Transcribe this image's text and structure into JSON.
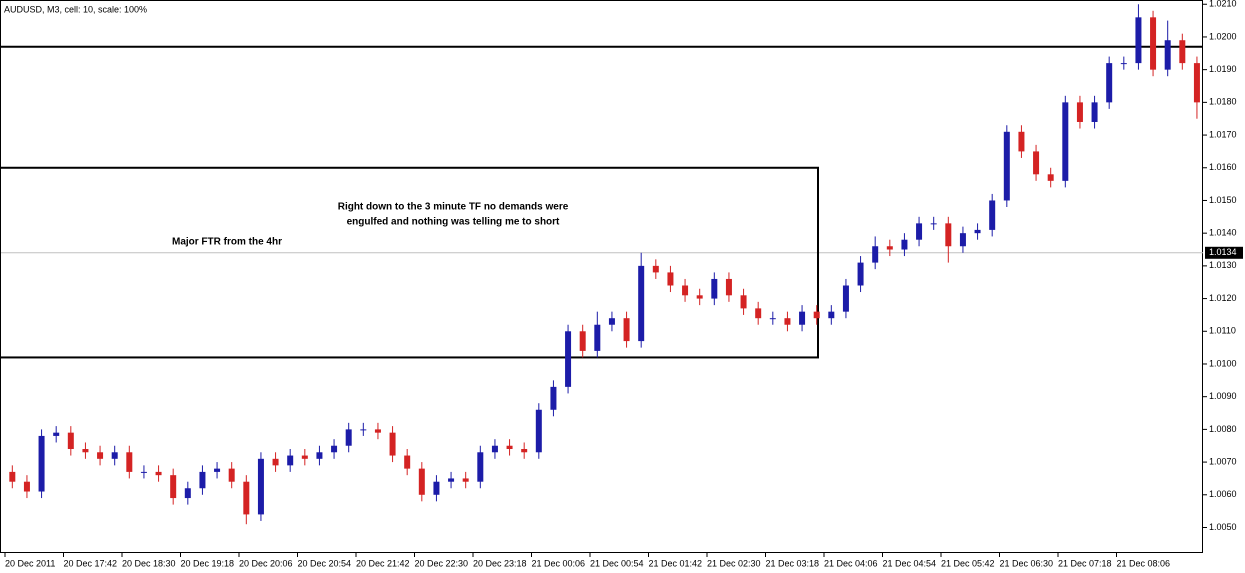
{
  "chart_data": {
    "type": "candlestick",
    "title": "AUDUSD, M3, cell: 10, scale: 100%",
    "annotations": [
      "Right down to the 3 minute TF no demands were",
      "engulfed and nothing was telling me to short",
      "Major FTR from the 4hr"
    ],
    "x": [
      "20 Dec 2011",
      null,
      null,
      null,
      "20 Dec 17:42",
      null,
      null,
      null,
      "20 Dec 18:30",
      null,
      null,
      null,
      "20 Dec 19:18",
      null,
      null,
      null,
      "20 Dec 20:06",
      null,
      null,
      null,
      "20 Dec 20:54",
      null,
      null,
      null,
      "20 Dec 21:42",
      null,
      null,
      null,
      "20 Dec 22:30",
      null,
      null,
      null,
      "20 Dec 23:18",
      null,
      null,
      null,
      "21 Dec 00:06",
      null,
      null,
      null,
      "21 Dec 00:54",
      null,
      null,
      null,
      "21 Dec 01:42",
      null,
      null,
      null,
      "21 Dec 02:30",
      null,
      null,
      null,
      "21 Dec 03:18",
      null,
      null,
      null,
      "21 Dec 04:06",
      null,
      null,
      null,
      "21 Dec 04:54",
      null,
      null,
      null,
      "21 Dec 05:42",
      null,
      null,
      null,
      "21 Dec 06:30",
      null,
      null,
      null,
      "21 Dec 07:18",
      null,
      null,
      null,
      "21 Dec 08:06",
      null,
      null,
      null,
      null,
      null
    ],
    "open": [
      1.0067,
      1.0064,
      1.0061,
      1.0078,
      1.0079,
      1.0074,
      1.0073,
      1.0071,
      1.0073,
      1.0067,
      1.0067,
      1.0066,
      1.0059,
      1.0062,
      1.0067,
      1.0068,
      1.0064,
      1.0054,
      1.0071,
      1.0069,
      1.0072,
      1.0071,
      1.0073,
      1.0075,
      1.008,
      1.008,
      1.0079,
      1.0072,
      1.0068,
      1.006,
      1.0064,
      1.0065,
      1.0064,
      1.0073,
      1.0075,
      1.0074,
      1.0073,
      1.0086,
      1.0093,
      1.011,
      1.0104,
      1.0112,
      1.0114,
      1.0107,
      1.013,
      1.0128,
      1.0124,
      1.0121,
      1.012,
      1.0126,
      1.0121,
      1.0117,
      1.0114,
      1.0114,
      1.0112,
      1.0116,
      1.0114,
      1.0116,
      1.0124,
      1.0131,
      1.0136,
      1.0135,
      1.0138,
      1.0143,
      1.0143,
      1.0136,
      1.014,
      1.0141,
      1.015,
      1.0171,
      1.0165,
      1.0158,
      1.0156,
      1.018,
      1.0174,
      1.018,
      1.0192,
      1.0192,
      1.0206,
      1.019,
      1.0199,
      1.0192
    ],
    "high": [
      1.0069,
      1.0066,
      1.008,
      1.0081,
      1.0081,
      1.0076,
      1.0075,
      1.0075,
      1.0075,
      1.0069,
      1.0069,
      1.0068,
      1.0064,
      1.0069,
      1.007,
      1.007,
      1.0066,
      1.0073,
      1.0073,
      1.0074,
      1.0074,
      1.0075,
      1.0077,
      1.0082,
      1.0082,
      1.0082,
      1.0081,
      1.0074,
      1.007,
      1.0066,
      1.0067,
      1.0067,
      1.0075,
      1.0077,
      1.0077,
      1.0076,
      1.0088,
      1.0095,
      1.0112,
      1.0112,
      1.0116,
      1.0116,
      1.0116,
      1.0134,
      1.0132,
      1.013,
      1.0126,
      1.0123,
      1.0128,
      1.0128,
      1.0123,
      1.0119,
      1.0116,
      1.0116,
      1.0118,
      1.0118,
      1.0118,
      1.0126,
      1.0133,
      1.0139,
      1.0138,
      1.014,
      1.0145,
      1.0145,
      1.0145,
      1.0142,
      1.0143,
      1.0152,
      1.0173,
      1.0173,
      1.0167,
      1.016,
      1.0182,
      1.0182,
      1.0182,
      1.0194,
      1.0194,
      1.021,
      1.0208,
      1.0205,
      1.0201,
      1.0194
    ],
    "low": [
      1.0062,
      1.0059,
      1.0059,
      1.0076,
      1.0072,
      1.0071,
      1.0069,
      1.0069,
      1.0065,
      1.0065,
      1.0064,
      1.0057,
      1.0057,
      1.006,
      1.0065,
      1.0062,
      1.0051,
      1.0052,
      1.0067,
      1.0067,
      1.0069,
      1.0069,
      1.0071,
      1.0073,
      1.0078,
      1.0077,
      1.007,
      1.0066,
      1.0058,
      1.0058,
      1.0062,
      1.0062,
      1.0062,
      1.0071,
      1.0072,
      1.0071,
      1.0071,
      1.0084,
      1.0091,
      1.0102,
      1.0102,
      1.011,
      1.0105,
      1.0105,
      1.0126,
      1.0122,
      1.0119,
      1.0118,
      1.0118,
      1.0119,
      1.0115,
      1.0112,
      1.0112,
      1.011,
      1.011,
      1.0112,
      1.0112,
      1.0114,
      1.0122,
      1.0129,
      1.0133,
      1.0133,
      1.0136,
      1.0141,
      1.0131,
      1.0134,
      1.0138,
      1.0139,
      1.0148,
      1.0163,
      1.0156,
      1.0154,
      1.0154,
      1.0172,
      1.0172,
      1.0178,
      1.019,
      1.019,
      1.0188,
      1.0188,
      1.019,
      1.0175
    ],
    "close": [
      1.0064,
      1.0061,
      1.0078,
      1.0079,
      1.0074,
      1.0073,
      1.0071,
      1.0073,
      1.0067,
      1.0067,
      1.0066,
      1.0059,
      1.0062,
      1.0067,
      1.0068,
      1.0064,
      1.0054,
      1.0071,
      1.0069,
      1.0072,
      1.0071,
      1.0073,
      1.0075,
      1.008,
      1.008,
      1.0079,
      1.0072,
      1.0068,
      1.006,
      1.0064,
      1.0065,
      1.0064,
      1.0073,
      1.0075,
      1.0074,
      1.0073,
      1.0086,
      1.0093,
      1.011,
      1.0104,
      1.0112,
      1.0114,
      1.0107,
      1.013,
      1.0128,
      1.0124,
      1.0121,
      1.012,
      1.0126,
      1.0121,
      1.0117,
      1.0114,
      1.0114,
      1.0112,
      1.0116,
      1.0114,
      1.0116,
      1.0124,
      1.0131,
      1.0136,
      1.0135,
      1.0138,
      1.0143,
      1.0143,
      1.0136,
      1.014,
      1.0141,
      1.015,
      1.0171,
      1.0165,
      1.0158,
      1.0156,
      1.018,
      1.0174,
      1.018,
      1.0192,
      1.0192,
      1.0206,
      1.019,
      1.0199,
      1.0192,
      1.018
    ],
    "up_color": "#1c1ca8",
    "down_color": "#d42323",
    "hline": 1.0197,
    "zone": {
      "high": 1.016,
      "low": 1.0102
    },
    "last_price": 1.0134,
    "ylim": [
      1.00422,
      1.02113
    ],
    "yticks": [
      {
        "value": 1.005,
        "label": "1.0050"
      },
      {
        "value": 1.006,
        "label": "1.0060"
      },
      {
        "value": 1.007,
        "label": "1.0070"
      },
      {
        "value": 1.008,
        "label": "1.0080"
      },
      {
        "value": 1.009,
        "label": "1.0090"
      },
      {
        "value": 1.01,
        "label": "1.0100"
      },
      {
        "value": 1.011,
        "label": "1.0110"
      },
      {
        "value": 1.012,
        "label": "1.0120"
      },
      {
        "value": 1.013,
        "label": "1.0130"
      },
      {
        "value": 1.014,
        "label": "1.0140"
      },
      {
        "value": 1.015,
        "label": "1.0150"
      },
      {
        "value": 1.016,
        "label": "1.0160"
      },
      {
        "value": 1.017,
        "label": "1.0170"
      },
      {
        "value": 1.018,
        "label": "1.0180"
      },
      {
        "value": 1.019,
        "label": "1.0190"
      },
      {
        "value": 1.02,
        "label": "1.0200"
      },
      {
        "value": 1.021,
        "label": "1.0210"
      }
    ]
  }
}
